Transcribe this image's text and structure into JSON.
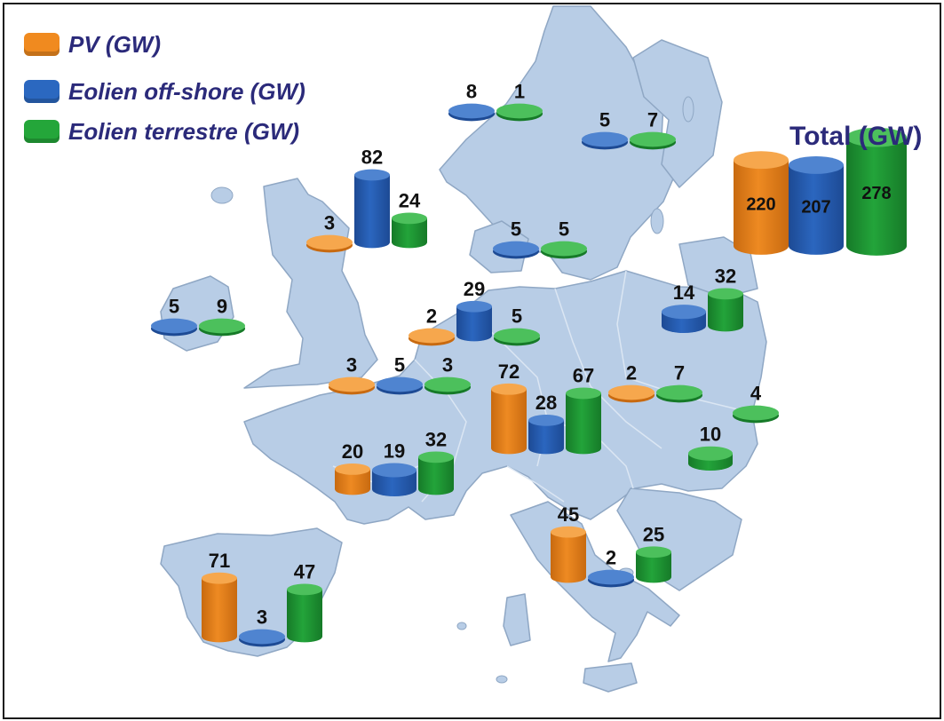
{
  "legend": [
    {
      "label": "PV (GW)",
      "color": "#f08a1f"
    },
    {
      "label": "Eolien off-shore (GW)",
      "color": "#2b68c0"
    },
    {
      "label": "Eolien terrestre (GW)",
      "color": "#24a63a"
    }
  ],
  "total": {
    "title": "Total (GW)",
    "pv": "220",
    "offshore": "207",
    "onshore": "278"
  },
  "chart_data": {
    "type": "bar",
    "series_names": [
      "PV (GW)",
      "Eolien off-shore (GW)",
      "Eolien terrestre (GW)"
    ],
    "groups": [
      {
        "pv": null,
        "offshore": 8,
        "onshore": 1
      },
      {
        "pv": null,
        "offshore": 5,
        "onshore": 7
      },
      {
        "pv": 3,
        "offshore": 82,
        "onshore": 24
      },
      {
        "pv": null,
        "offshore": 5,
        "onshore": 5
      },
      {
        "pv": null,
        "offshore": 5,
        "onshore": 9
      },
      {
        "pv": 2,
        "offshore": 29,
        "onshore": 5
      },
      {
        "pv": null,
        "offshore": 14,
        "onshore": 32
      },
      {
        "pv": 3,
        "offshore": 5,
        "onshore": 3
      },
      {
        "pv": 72,
        "offshore": 28,
        "onshore": 67
      },
      {
        "pv": 2,
        "offshore": null,
        "onshore": 7
      },
      {
        "pv": null,
        "offshore": null,
        "onshore": 4
      },
      {
        "pv": null,
        "offshore": null,
        "onshore": 10
      },
      {
        "pv": 20,
        "offshore": 19,
        "onshore": 32
      },
      {
        "pv": 45,
        "offshore": 2,
        "onshore": 25
      },
      {
        "pv": 71,
        "offshore": 3,
        "onshore": 47
      }
    ]
  }
}
